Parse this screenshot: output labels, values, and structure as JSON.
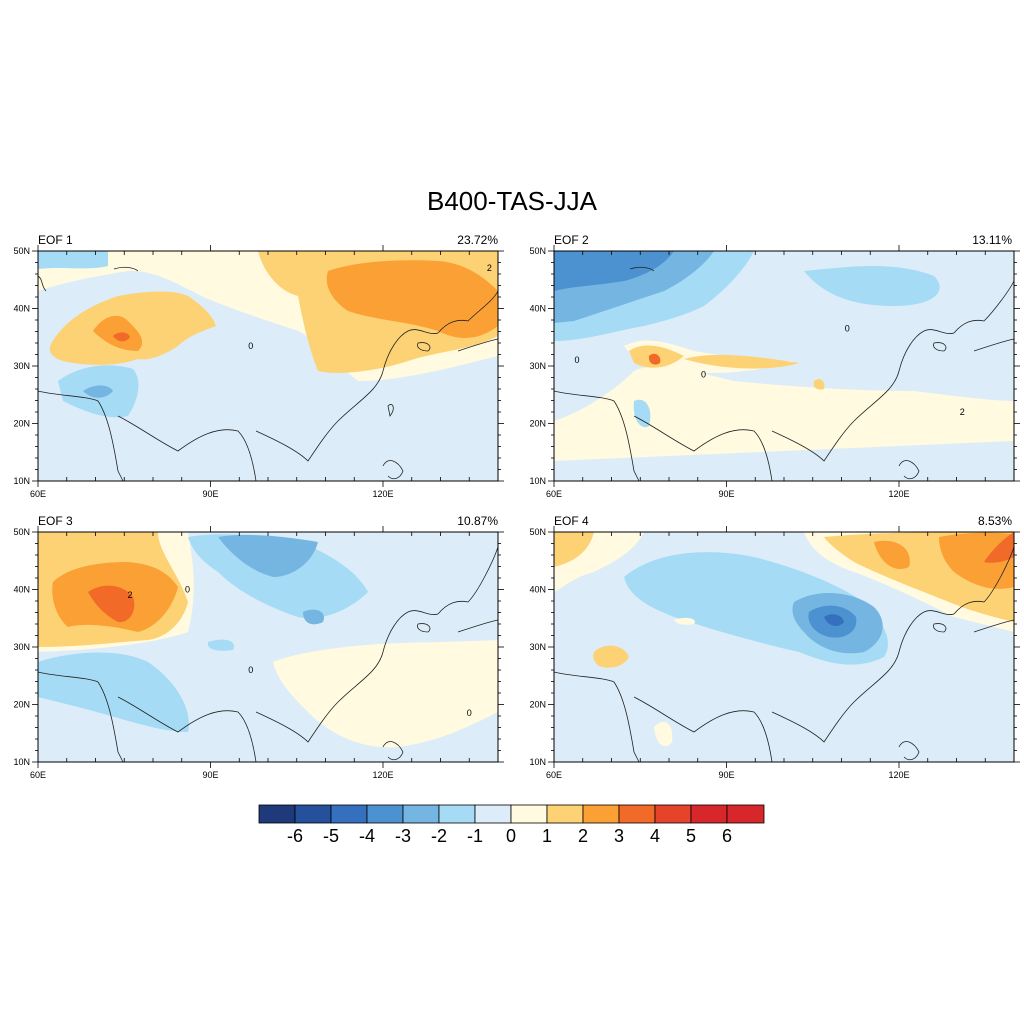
{
  "title": "B400-TAS-JJA",
  "panels": [
    {
      "id": "eof1",
      "label": "EOF 1",
      "variance": "23.72%",
      "contour_labels": [
        {
          "text": "2",
          "lon": 138.5,
          "lat": 46.5
        },
        {
          "text": "0",
          "lon": 97,
          "lat": 33
        }
      ]
    },
    {
      "id": "eof2",
      "label": "EOF 2",
      "variance": "13.11%",
      "contour_labels": [
        {
          "text": "0",
          "lon": 64,
          "lat": 30.5
        },
        {
          "text": "0",
          "lon": 86,
          "lat": 28
        },
        {
          "text": "0",
          "lon": 111,
          "lat": 36
        },
        {
          "text": "2",
          "lon": 131,
          "lat": 21.5
        }
      ]
    },
    {
      "id": "eof3",
      "label": "EOF 3",
      "variance": "10.87%",
      "contour_labels": [
        {
          "text": "2",
          "lon": 76,
          "lat": 38.5
        },
        {
          "text": "0",
          "lon": 86,
          "lat": 39.5
        },
        {
          "text": "0",
          "lon": 97,
          "lat": 25.5
        },
        {
          "text": "0",
          "lon": 135,
          "lat": 18
        }
      ]
    },
    {
      "id": "eof4",
      "label": "EOF 4",
      "variance": "8.53%",
      "contour_labels": []
    }
  ],
  "axes": {
    "x_ticks": [
      "60E",
      "90E",
      "120E"
    ],
    "y_ticks": [
      "10N",
      "20N",
      "30N",
      "40N",
      "50N"
    ],
    "lon_range": [
      60,
      140
    ],
    "lat_range": [
      10,
      50
    ]
  },
  "colorbar": {
    "labels": [
      "-6",
      "-5",
      "-4",
      "-3",
      "-2",
      "-1",
      "0",
      "1",
      "2",
      "3",
      "4",
      "5",
      "6"
    ],
    "colors": [
      "#1f3a7a",
      "#24509c",
      "#3470bd",
      "#4d92d0",
      "#75b5e2",
      "#a6dbf5",
      "#dcedf9",
      "#fffae0",
      "#fdd274",
      "#fba035",
      "#f26a28",
      "#e5432a",
      "#d7272a"
    ]
  },
  "colors": {
    "land_outline": "#222222",
    "frame": "#000000"
  }
}
